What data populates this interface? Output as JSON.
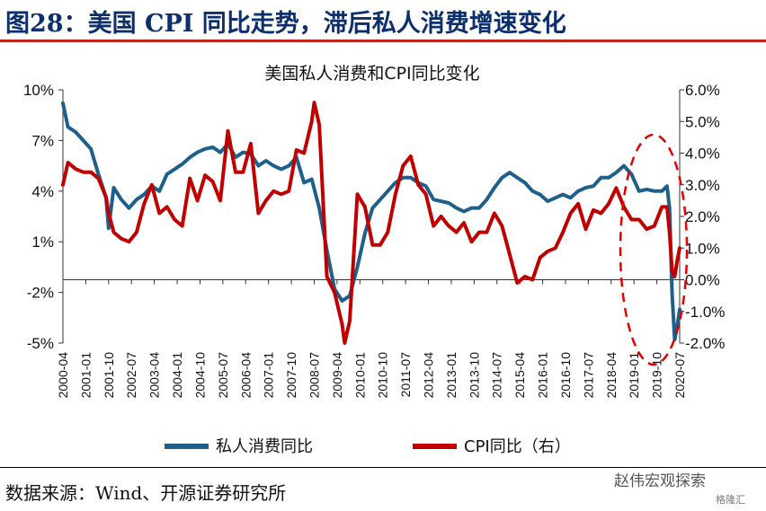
{
  "page": {
    "figure_title": "图28：美国 CPI 同比走势，滞后私人消费增速变化",
    "source": "数据来源：Wind、开源证券研究所",
    "watermark": "赵伟宏观探索",
    "watermark_sub": "格隆汇"
  },
  "chart_data": {
    "type": "line",
    "title": "美国私人消费和CPI同比变化",
    "y_left": {
      "min": -5,
      "max": 10,
      "ticks": [
        10,
        7,
        4,
        1,
        -2,
        -5
      ],
      "tick_labels": [
        "10%",
        "7%",
        "4%",
        "1%",
        "-2%",
        "-5%"
      ]
    },
    "y_right": {
      "min": -2,
      "max": 6,
      "ticks": [
        6,
        5,
        4,
        3,
        2,
        1,
        0,
        -1,
        -2
      ],
      "tick_labels": [
        "6.0%",
        "5.0%",
        "4.0%",
        "3.0%",
        "2.0%",
        "1.0%",
        "0.0%",
        "-1.0%",
        "-2.0%"
      ]
    },
    "x_start": "2000-04",
    "x_end": "2020-07",
    "x_tick_labels": [
      "2000-04",
      "2001-01",
      "2001-10",
      "2002-07",
      "2003-04",
      "2004-01",
      "2004-10",
      "2005-07",
      "2006-04",
      "2007-01",
      "2007-10",
      "2008-07",
      "2009-04",
      "2010-01",
      "2010-10",
      "2011-07",
      "2012-04",
      "2013-01",
      "2013-10",
      "2014-07",
      "2015-04",
      "2016-01",
      "2016-10",
      "2017-07",
      "2018-04",
      "2019-01",
      "2019-10",
      "2020-07"
    ],
    "series": [
      {
        "name": "私人消费同比",
        "axis": "left",
        "color": "#1f5f8b",
        "points": [
          [
            "2000-04",
            9.2
          ],
          [
            "2000-06",
            7.8
          ],
          [
            "2000-09",
            7.5
          ],
          [
            "2000-12",
            7.0
          ],
          [
            "2001-03",
            6.5
          ],
          [
            "2001-06",
            5.0
          ],
          [
            "2001-09",
            3.6
          ],
          [
            "2001-10",
            1.8
          ],
          [
            "2001-12",
            4.2
          ],
          [
            "2002-03",
            3.5
          ],
          [
            "2002-06",
            3.0
          ],
          [
            "2002-09",
            3.5
          ],
          [
            "2002-12",
            3.8
          ],
          [
            "2003-03",
            4.3
          ],
          [
            "2003-06",
            4.0
          ],
          [
            "2003-09",
            5.0
          ],
          [
            "2003-12",
            5.3
          ],
          [
            "2004-03",
            5.6
          ],
          [
            "2004-06",
            6.0
          ],
          [
            "2004-09",
            6.3
          ],
          [
            "2004-12",
            6.5
          ],
          [
            "2005-03",
            6.6
          ],
          [
            "2005-06",
            6.3
          ],
          [
            "2005-09",
            6.8
          ],
          [
            "2005-12",
            6.0
          ],
          [
            "2006-03",
            6.3
          ],
          [
            "2006-06",
            6.2
          ],
          [
            "2006-09",
            5.5
          ],
          [
            "2006-12",
            5.8
          ],
          [
            "2007-03",
            5.5
          ],
          [
            "2007-06",
            5.3
          ],
          [
            "2007-09",
            5.5
          ],
          [
            "2007-12",
            6.0
          ],
          [
            "2008-03",
            4.5
          ],
          [
            "2008-06",
            4.7
          ],
          [
            "2008-09",
            3.0
          ],
          [
            "2008-12",
            0.5
          ],
          [
            "2009-03",
            -1.8
          ],
          [
            "2009-06",
            -2.5
          ],
          [
            "2009-09",
            -2.2
          ],
          [
            "2009-12",
            -0.5
          ],
          [
            "2010-03",
            1.5
          ],
          [
            "2010-06",
            3.0
          ],
          [
            "2010-09",
            3.5
          ],
          [
            "2010-12",
            4.0
          ],
          [
            "2011-03",
            4.5
          ],
          [
            "2011-06",
            4.8
          ],
          [
            "2011-09",
            4.8
          ],
          [
            "2011-12",
            4.5
          ],
          [
            "2012-03",
            4.3
          ],
          [
            "2012-06",
            3.5
          ],
          [
            "2012-09",
            3.4
          ],
          [
            "2012-12",
            3.3
          ],
          [
            "2013-03",
            3.0
          ],
          [
            "2013-06",
            2.8
          ],
          [
            "2013-09",
            3.0
          ],
          [
            "2013-12",
            3.0
          ],
          [
            "2014-03",
            3.5
          ],
          [
            "2014-06",
            4.2
          ],
          [
            "2014-09",
            4.8
          ],
          [
            "2014-12",
            5.1
          ],
          [
            "2015-03",
            4.8
          ],
          [
            "2015-06",
            4.5
          ],
          [
            "2015-09",
            4.0
          ],
          [
            "2015-12",
            3.8
          ],
          [
            "2016-03",
            3.4
          ],
          [
            "2016-06",
            3.6
          ],
          [
            "2016-09",
            3.8
          ],
          [
            "2016-12",
            3.6
          ],
          [
            "2017-03",
            4.0
          ],
          [
            "2017-06",
            4.2
          ],
          [
            "2017-09",
            4.3
          ],
          [
            "2017-12",
            4.8
          ],
          [
            "2018-03",
            4.8
          ],
          [
            "2018-06",
            5.1
          ],
          [
            "2018-09",
            5.5
          ],
          [
            "2018-12",
            5.0
          ],
          [
            "2019-03",
            4.0
          ],
          [
            "2019-06",
            4.1
          ],
          [
            "2019-09",
            4.0
          ],
          [
            "2019-12",
            4.0
          ],
          [
            "2020-02",
            4.3
          ],
          [
            "2020-03",
            3.0
          ],
          [
            "2020-04",
            -2.0
          ],
          [
            "2020-05",
            -4.8
          ],
          [
            "2020-06",
            -4.0
          ],
          [
            "2020-07",
            -3.0
          ]
        ]
      },
      {
        "name": "CPI同比（右）",
        "axis": "right",
        "color": "#c00000",
        "points": [
          [
            "2000-04",
            3.0
          ],
          [
            "2000-06",
            3.7
          ],
          [
            "2000-09",
            3.5
          ],
          [
            "2000-12",
            3.4
          ],
          [
            "2001-03",
            3.4
          ],
          [
            "2001-06",
            3.2
          ],
          [
            "2001-09",
            2.6
          ],
          [
            "2001-10",
            2.1
          ],
          [
            "2001-12",
            1.5
          ],
          [
            "2002-03",
            1.3
          ],
          [
            "2002-06",
            1.2
          ],
          [
            "2002-09",
            1.5
          ],
          [
            "2002-12",
            2.4
          ],
          [
            "2003-03",
            3.0
          ],
          [
            "2003-06",
            2.1
          ],
          [
            "2003-09",
            2.3
          ],
          [
            "2003-12",
            1.9
          ],
          [
            "2004-03",
            1.7
          ],
          [
            "2004-06",
            3.2
          ],
          [
            "2004-09",
            2.5
          ],
          [
            "2004-12",
            3.3
          ],
          [
            "2005-03",
            3.1
          ],
          [
            "2005-06",
            2.5
          ],
          [
            "2005-09",
            4.7
          ],
          [
            "2005-12",
            3.4
          ],
          [
            "2006-03",
            3.4
          ],
          [
            "2006-06",
            4.3
          ],
          [
            "2006-09",
            2.1
          ],
          [
            "2006-12",
            2.5
          ],
          [
            "2007-03",
            2.8
          ],
          [
            "2007-06",
            2.7
          ],
          [
            "2007-09",
            2.8
          ],
          [
            "2007-12",
            4.1
          ],
          [
            "2008-03",
            4.0
          ],
          [
            "2008-06",
            5.0
          ],
          [
            "2008-07",
            5.6
          ],
          [
            "2008-09",
            4.9
          ],
          [
            "2008-12",
            0.1
          ],
          [
            "2009-03",
            -0.4
          ],
          [
            "2009-06",
            -1.4
          ],
          [
            "2009-07",
            -2.0
          ],
          [
            "2009-09",
            -1.3
          ],
          [
            "2009-12",
            2.7
          ],
          [
            "2010-03",
            2.3
          ],
          [
            "2010-06",
            1.1
          ],
          [
            "2010-09",
            1.1
          ],
          [
            "2010-12",
            1.5
          ],
          [
            "2011-03",
            2.7
          ],
          [
            "2011-06",
            3.6
          ],
          [
            "2011-09",
            3.9
          ],
          [
            "2011-12",
            3.0
          ],
          [
            "2012-03",
            2.7
          ],
          [
            "2012-06",
            1.7
          ],
          [
            "2012-09",
            2.0
          ],
          [
            "2012-12",
            1.7
          ],
          [
            "2013-03",
            1.5
          ],
          [
            "2013-06",
            1.8
          ],
          [
            "2013-09",
            1.2
          ],
          [
            "2013-12",
            1.5
          ],
          [
            "2014-03",
            1.5
          ],
          [
            "2014-06",
            2.1
          ],
          [
            "2014-09",
            1.7
          ],
          [
            "2014-12",
            0.8
          ],
          [
            "2015-03",
            -0.1
          ],
          [
            "2015-06",
            0.1
          ],
          [
            "2015-09",
            0.0
          ],
          [
            "2015-12",
            0.7
          ],
          [
            "2016-03",
            0.9
          ],
          [
            "2016-06",
            1.0
          ],
          [
            "2016-09",
            1.5
          ],
          [
            "2016-12",
            2.1
          ],
          [
            "2017-03",
            2.4
          ],
          [
            "2017-06",
            1.6
          ],
          [
            "2017-09",
            2.2
          ],
          [
            "2017-12",
            2.1
          ],
          [
            "2018-03",
            2.4
          ],
          [
            "2018-06",
            2.9
          ],
          [
            "2018-09",
            2.3
          ],
          [
            "2018-12",
            1.9
          ],
          [
            "2019-03",
            1.9
          ],
          [
            "2019-06",
            1.6
          ],
          [
            "2019-09",
            1.7
          ],
          [
            "2019-12",
            2.3
          ],
          [
            "2020-02",
            2.3
          ],
          [
            "2020-03",
            1.5
          ],
          [
            "2020-04",
            0.3
          ],
          [
            "2020-05",
            0.1
          ],
          [
            "2020-06",
            0.6
          ],
          [
            "2020-07",
            1.0
          ]
        ]
      }
    ],
    "legend": [
      "私人消费同比",
      "CPI同比（右）"
    ],
    "annotation": "red dashed ellipse highlighting 2019-2020"
  }
}
